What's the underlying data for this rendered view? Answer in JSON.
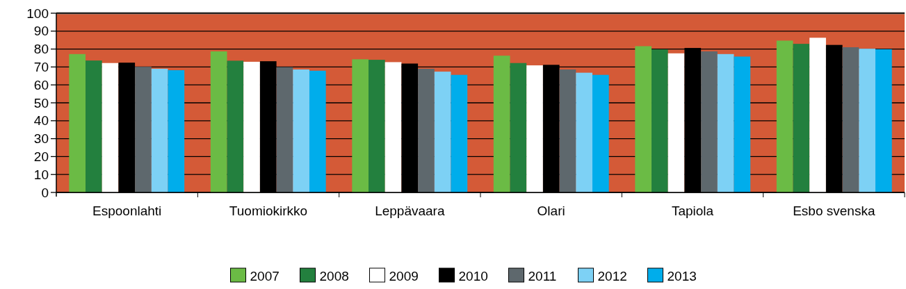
{
  "chart_data": {
    "type": "bar",
    "categories": [
      "Espoonlahti",
      "Tuomiokirkko",
      "Leppävaara",
      "Olari",
      "Tapiola",
      "Esbo svenska"
    ],
    "series": [
      {
        "name": "2007",
        "color": "#6bbb45",
        "values": [
          77.2,
          78.7,
          74.3,
          76.3,
          81.6,
          84.7
        ]
      },
      {
        "name": "2008",
        "color": "#23803e",
        "values": [
          73.6,
          73.5,
          74.0,
          72.2,
          79.8,
          82.9
        ]
      },
      {
        "name": "2009",
        "color": "#ffffff",
        "values": [
          72.2,
          72.9,
          72.7,
          70.9,
          77.6,
          86.3
        ]
      },
      {
        "name": "2010",
        "color": "#000000",
        "values": [
          72.4,
          73.2,
          71.9,
          71.2,
          80.6,
          82.3
        ]
      },
      {
        "name": "2011",
        "color": "#5e686d",
        "values": [
          70.1,
          69.9,
          69.0,
          68.6,
          78.7,
          81.0
        ]
      },
      {
        "name": "2012",
        "color": "#7dd1f5",
        "values": [
          69.0,
          68.6,
          67.4,
          66.8,
          77.2,
          80.2
        ]
      },
      {
        "name": "2013",
        "color": "#00adeb",
        "values": [
          68.2,
          67.9,
          65.6,
          65.6,
          75.8,
          79.9
        ]
      }
    ],
    "ylim": [
      0,
      100
    ],
    "yticks": [
      0,
      10,
      20,
      30,
      40,
      50,
      60,
      70,
      80,
      90,
      100
    ],
    "grid": "y",
    "legend": "bottom"
  }
}
